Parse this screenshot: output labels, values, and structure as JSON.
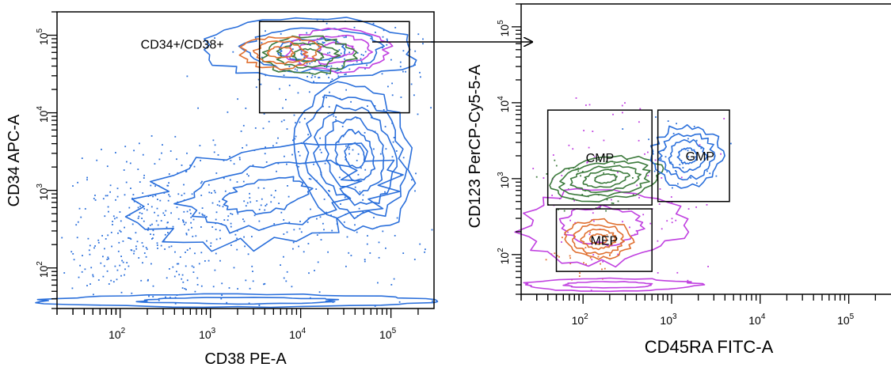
{
  "chart_data": [
    {
      "type": "scatter",
      "subtype": "flow-cytometry-contour",
      "title": "",
      "xlabel": "CD38 PE-A",
      "ylabel": "CD34 APC-A",
      "scale": "log",
      "xlim": [
        20,
        300000
      ],
      "ylim": [
        30,
        200000
      ],
      "x_ticks": [
        {
          "value": 100,
          "base": "10",
          "exp": "2"
        },
        {
          "value": 1000,
          "base": "10",
          "exp": "3"
        },
        {
          "value": 10000,
          "base": "10",
          "exp": "4"
        },
        {
          "value": 100000,
          "base": "10",
          "exp": "5"
        }
      ],
      "y_ticks": [
        {
          "value": 100,
          "base": "10",
          "exp": "2"
        },
        {
          "value": 1000,
          "base": "10",
          "exp": "3"
        },
        {
          "value": 10000,
          "base": "10",
          "exp": "4"
        },
        {
          "value": 100000,
          "base": "10",
          "exp": "5"
        }
      ],
      "gates": [
        {
          "label": "CD34+/CD38+",
          "x": [
            3500,
            160000
          ],
          "y": [
            10000,
            150000
          ]
        }
      ],
      "populations": [
        {
          "color": "#2a6fdb",
          "center": [
            40000,
            2800
          ]
        },
        {
          "color": "#2a6fdb",
          "center": [
            30000,
            65000
          ]
        },
        {
          "color": "#c040e0",
          "center": [
            25000,
            65000
          ]
        },
        {
          "color": "#3c7a3c",
          "center": [
            12000,
            55000
          ]
        },
        {
          "color": "#e07030",
          "center": [
            6000,
            60000
          ]
        }
      ]
    },
    {
      "type": "scatter",
      "subtype": "flow-cytometry-contour",
      "title": "",
      "xlabel": "CD45RA FITC-A",
      "ylabel": "CD123 PerCP-Cy5-5-A",
      "scale": "log",
      "xlim": [
        20,
        300000
      ],
      "ylim": [
        30,
        200000
      ],
      "x_ticks": [
        {
          "value": 100,
          "base": "10",
          "exp": "2"
        },
        {
          "value": 1000,
          "base": "10",
          "exp": "3"
        },
        {
          "value": 10000,
          "base": "10",
          "exp": "4"
        },
        {
          "value": 100000,
          "base": "10",
          "exp": "5"
        }
      ],
      "y_ticks": [
        {
          "value": 100,
          "base": "10",
          "exp": "2"
        },
        {
          "value": 1000,
          "base": "10",
          "exp": "3"
        },
        {
          "value": 10000,
          "base": "10",
          "exp": "4"
        },
        {
          "value": 100000,
          "base": "10",
          "exp": "5"
        }
      ],
      "gates": [
        {
          "label": "CMP",
          "x": [
            40,
            600
          ],
          "y": [
            450,
            8000
          ]
        },
        {
          "label": "GMP",
          "x": [
            700,
            4500
          ],
          "y": [
            500,
            8000
          ]
        },
        {
          "label": "MEP",
          "x": [
            50,
            600
          ],
          "y": [
            60,
            400
          ]
        }
      ],
      "populations": [
        {
          "color": "#3c7a3c",
          "center": [
            180,
            1000
          ]
        },
        {
          "color": "#2a6fdb",
          "center": [
            1500,
            2000
          ]
        },
        {
          "color": "#e07030",
          "center": [
            150,
            160
          ]
        },
        {
          "color": "#c040e0",
          "center": [
            300,
            45
          ]
        }
      ]
    }
  ],
  "colors": {
    "blue": "#2a6fdb",
    "green": "#3c7a3c",
    "orange": "#e07030",
    "magenta": "#c040e0",
    "axis": "#000000"
  }
}
